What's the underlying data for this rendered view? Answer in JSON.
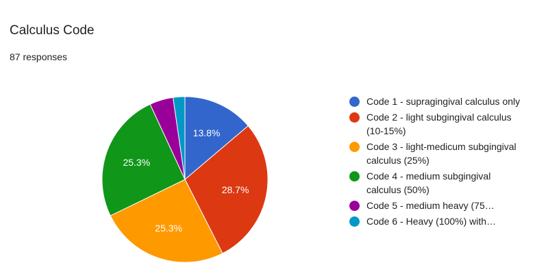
{
  "card": {
    "title": "Calculus Code",
    "responses": "87 responses"
  },
  "chart_data": {
    "type": "pie",
    "slices": [
      {
        "label": "Code 1 - supragingival calculus only",
        "value": 13.8,
        "display": "13.8%",
        "color": "#3366cc",
        "clip": false
      },
      {
        "label": "Code 2 - light subgingival calculus (10-15%)",
        "value": 28.7,
        "display": "28.7%",
        "color": "#dc3912",
        "clip": false
      },
      {
        "label": "Code 3 - light-medicum subgingival calculus (25%)",
        "value": 25.3,
        "display": "25.3%",
        "color": "#ff9900",
        "clip": false
      },
      {
        "label": "Code 4 - medium subgingival calculus (50%)",
        "value": 25.3,
        "display": "25.3%",
        "color": "#109618",
        "clip": false
      },
      {
        "label": "Code 5 - medium heavy (75…",
        "value": 4.6,
        "display": "",
        "color": "#990099",
        "clip": true
      },
      {
        "label": "Code 6 - Heavy (100%) with…",
        "value": 2.3,
        "display": "",
        "color": "#0099c6",
        "clip": true
      }
    ],
    "start_angle_deg": 90,
    "direction": "clockwise",
    "legend_position": "right"
  }
}
